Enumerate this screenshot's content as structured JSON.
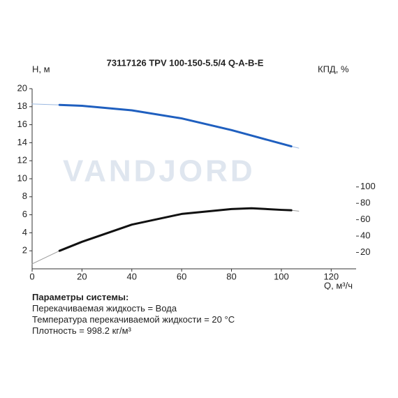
{
  "chart_data": {
    "type": "line",
    "title": "73117126 TPV 100-150-5.5/4 Q-A-B-E",
    "watermark": "VANDJORD",
    "ylabel": "H, м",
    "y2label": "КПД, %",
    "xlabel": "Q, м³/ч",
    "x": [
      0,
      11,
      20,
      40,
      60,
      80,
      88,
      100,
      104,
      107
    ],
    "series": [
      {
        "color": "#9bb8e0",
        "line_width": 1,
        "values": [
          18.3,
          18.2,
          18.1,
          17.6,
          16.7,
          15.4,
          14.8,
          13.9,
          13.6,
          13.4
        ]
      },
      {
        "color": "#1f5fbf",
        "line_width": 3,
        "values": [
          null,
          18.2,
          18.1,
          17.6,
          16.7,
          15.4,
          14.8,
          13.9,
          13.6,
          null
        ]
      },
      {
        "color": "#999999",
        "line_width": 1,
        "axis": "y2",
        "values": [
          6,
          22,
          33,
          54,
          67,
          73,
          74,
          72,
          71.5,
          70.5
        ]
      },
      {
        "color": "#111111",
        "line_width": 3,
        "axis": "y2",
        "values": [
          null,
          22,
          33,
          54,
          67,
          73,
          74,
          72,
          71.5,
          null
        ]
      }
    ],
    "xlim": [
      0,
      130
    ],
    "xticks": [
      0,
      20,
      40,
      60,
      80,
      100,
      120
    ],
    "ylim": [
      0,
      20
    ],
    "yticks": [
      2,
      4,
      6,
      8,
      10,
      12,
      14,
      16,
      18,
      20
    ],
    "y2lim": [
      0,
      220
    ],
    "y2ticks": [
      20,
      40,
      60,
      80,
      100
    ]
  },
  "parameters": {
    "heading": "Параметры системы:",
    "lines": [
      "Перекачиваемая жидкость = Вода",
      "Температура перекачиваемой жидкости = 20 °C",
      "Плотность = 998.2 кг/м³"
    ]
  }
}
